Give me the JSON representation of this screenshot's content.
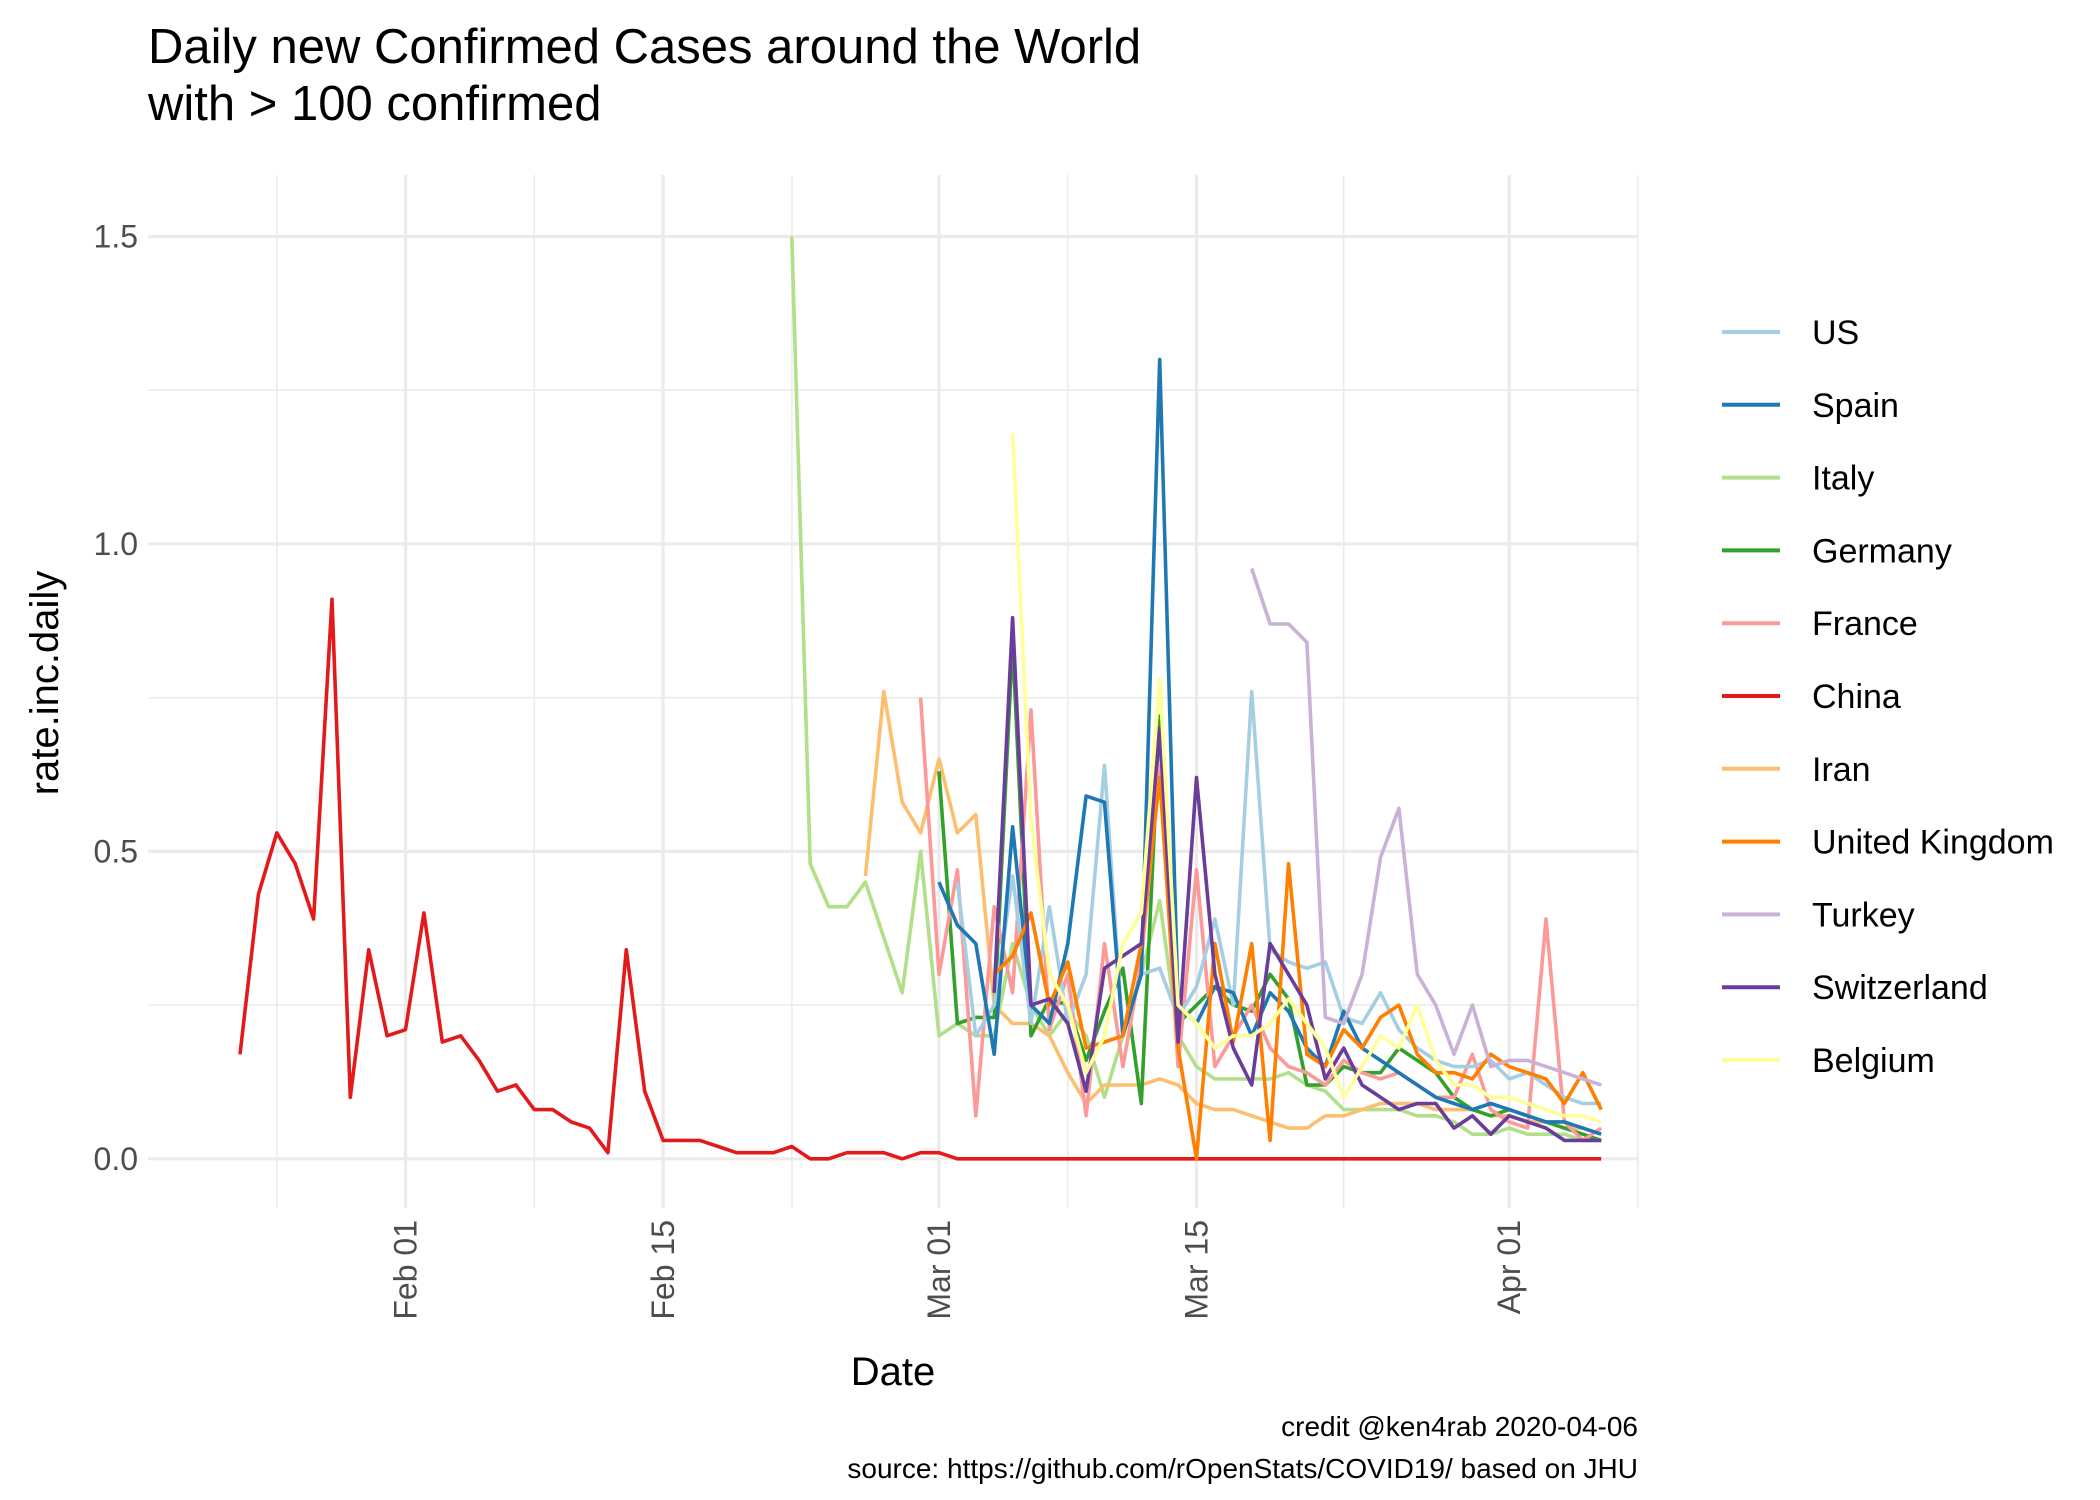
{
  "chart_data": {
    "type": "line",
    "title": [
      "Daily new Confirmed Cases around the World",
      "with > 100 confirmed"
    ],
    "xlabel": "Date",
    "ylabel": "rate.inc.daily",
    "xlim": [
      "2020-01-18",
      "2020-04-08"
    ],
    "ylim": [
      -0.08,
      1.6
    ],
    "x_ticks": [
      {
        "date": "2020-02-01",
        "label": "Feb 01"
      },
      {
        "date": "2020-02-15",
        "label": "Feb 15"
      },
      {
        "date": "2020-03-01",
        "label": "Mar 01"
      },
      {
        "date": "2020-03-15",
        "label": "Mar 15"
      },
      {
        "date": "2020-04-01",
        "label": "Apr 01"
      }
    ],
    "x_minor_ticks": [
      "2020-01-25",
      "2020-02-08",
      "2020-02-22",
      "2020-03-08",
      "2020-03-23",
      "2020-04-08"
    ],
    "y_ticks": [
      {
        "value": 0,
        "label": "0.0"
      },
      {
        "value": 0.5,
        "label": "0.5"
      },
      {
        "value": 1.0,
        "label": "1.0"
      },
      {
        "value": 1.5,
        "label": "1.5"
      }
    ],
    "y_minor_ticks": [
      0.25,
      0.75,
      1.25
    ],
    "grid": true,
    "legend_position": "right",
    "caption": [
      "credit @ken4rab 2020-04-06",
      "source: https://github.com/rOpenStats/COVID19/ based on JHU"
    ],
    "series": [
      {
        "name": "China",
        "color": "#E31A1C",
        "x": [
          "2020-01-23",
          "2020-01-24",
          "2020-01-25",
          "2020-01-26",
          "2020-01-27",
          "2020-01-28",
          "2020-01-29",
          "2020-01-30",
          "2020-01-31",
          "2020-02-01",
          "2020-02-02",
          "2020-02-03",
          "2020-02-04",
          "2020-02-05",
          "2020-02-06",
          "2020-02-07",
          "2020-02-08",
          "2020-02-09",
          "2020-02-10",
          "2020-02-11",
          "2020-02-12",
          "2020-02-13",
          "2020-02-14",
          "2020-02-15",
          "2020-02-16",
          "2020-02-17",
          "2020-02-18",
          "2020-02-19",
          "2020-02-20",
          "2020-02-21",
          "2020-02-22",
          "2020-02-23",
          "2020-02-24",
          "2020-02-25",
          "2020-02-26",
          "2020-02-27",
          "2020-02-28",
          "2020-02-29",
          "2020-03-01",
          "2020-03-02",
          "2020-03-03",
          "2020-04-06"
        ],
        "y": [
          0.17,
          0.43,
          0.53,
          0.48,
          0.39,
          0.91,
          0.1,
          0.34,
          0.2,
          0.21,
          0.4,
          0.19,
          0.2,
          0.16,
          0.11,
          0.12,
          0.08,
          0.08,
          0.06,
          0.05,
          0.01,
          0.34,
          0.11,
          0.03,
          0.03,
          0.03,
          0.02,
          0.01,
          0.01,
          0.01,
          0.02,
          0.0,
          0.0,
          0.01,
          0.01,
          0.01,
          0.0,
          0.01,
          0.01,
          0.0,
          0.0,
          0.0
        ]
      },
      {
        "name": "Italy",
        "color": "#B2DF8A",
        "x": [
          "2020-02-22",
          "2020-02-23",
          "2020-02-24",
          "2020-02-25",
          "2020-02-26",
          "2020-02-27",
          "2020-02-28",
          "2020-02-29",
          "2020-03-01",
          "2020-03-02",
          "2020-03-03",
          "2020-03-04",
          "2020-03-05",
          "2020-03-06",
          "2020-03-07",
          "2020-03-08",
          "2020-03-09",
          "2020-03-10",
          "2020-03-11",
          "2020-03-12",
          "2020-03-13",
          "2020-03-14",
          "2020-03-15",
          "2020-03-16",
          "2020-03-17",
          "2020-03-18",
          "2020-03-19",
          "2020-03-20",
          "2020-03-21",
          "2020-03-22",
          "2020-03-23",
          "2020-03-24",
          "2020-03-25",
          "2020-03-26",
          "2020-03-27",
          "2020-03-28",
          "2020-03-29",
          "2020-03-30",
          "2020-03-31",
          "2020-04-01",
          "2020-04-02",
          "2020-04-03",
          "2020-04-04",
          "2020-04-05",
          "2020-04-06"
        ],
        "y": [
          1.5,
          0.48,
          0.41,
          0.41,
          0.45,
          0.36,
          0.27,
          0.5,
          0.2,
          0.22,
          0.2,
          0.2,
          0.35,
          0.25,
          0.2,
          0.24,
          0.2,
          0.1,
          0.2,
          0.3,
          0.42,
          0.2,
          0.15,
          0.13,
          0.13,
          0.13,
          0.13,
          0.14,
          0.12,
          0.11,
          0.08,
          0.08,
          0.08,
          0.08,
          0.07,
          0.07,
          0.06,
          0.04,
          0.04,
          0.05,
          0.04,
          0.04,
          0.04,
          0.03,
          0.03
        ]
      },
      {
        "name": "Iran",
        "color": "#FDBF6F",
        "x": [
          "2020-02-26",
          "2020-02-27",
          "2020-02-28",
          "2020-02-29",
          "2020-03-01",
          "2020-03-02",
          "2020-03-03",
          "2020-03-04",
          "2020-03-05",
          "2020-03-06",
          "2020-03-07",
          "2020-03-08",
          "2020-03-09",
          "2020-03-10",
          "2020-03-11",
          "2020-03-12",
          "2020-03-13",
          "2020-03-14",
          "2020-03-15",
          "2020-03-16",
          "2020-03-17",
          "2020-03-18",
          "2020-03-19",
          "2020-03-20",
          "2020-03-21",
          "2020-03-22",
          "2020-03-23",
          "2020-03-24",
          "2020-03-25",
          "2020-03-26",
          "2020-03-27",
          "2020-03-28",
          "2020-03-29",
          "2020-03-30",
          "2020-03-31",
          "2020-04-01",
          "2020-04-02",
          "2020-04-03",
          "2020-04-04",
          "2020-04-05",
          "2020-04-06"
        ],
        "y": [
          0.46,
          0.76,
          0.58,
          0.53,
          0.65,
          0.53,
          0.56,
          0.25,
          0.22,
          0.22,
          0.2,
          0.14,
          0.09,
          0.12,
          0.12,
          0.12,
          0.13,
          0.12,
          0.09,
          0.08,
          0.08,
          0.07,
          0.06,
          0.05,
          0.05,
          0.07,
          0.07,
          0.08,
          0.09,
          0.09,
          0.09,
          0.08,
          0.08,
          0.08,
          0.07,
          0.07,
          0.06,
          0.06,
          0.05,
          0.05,
          0.04
        ]
      },
      {
        "name": "Germany",
        "color": "#33A02C",
        "x": [
          "2020-03-01",
          "2020-03-02",
          "2020-03-03",
          "2020-03-04",
          "2020-03-05",
          "2020-03-06",
          "2020-03-07",
          "2020-03-08",
          "2020-03-09",
          "2020-03-10",
          "2020-03-11",
          "2020-03-12",
          "2020-03-13",
          "2020-03-14",
          "2020-03-15",
          "2020-03-16",
          "2020-03-17",
          "2020-03-18",
          "2020-03-19",
          "2020-03-20",
          "2020-03-21",
          "2020-03-22",
          "2020-03-23",
          "2020-03-24",
          "2020-03-25",
          "2020-03-26",
          "2020-03-27",
          "2020-03-28",
          "2020-03-29",
          "2020-03-30",
          "2020-03-31",
          "2020-04-01",
          "2020-04-02",
          "2020-04-03",
          "2020-04-04",
          "2020-04-05",
          "2020-04-06"
        ],
        "y": [
          0.63,
          0.22,
          0.23,
          0.23,
          0.84,
          0.2,
          0.26,
          0.25,
          0.16,
          0.24,
          0.31,
          0.09,
          0.72,
          0.22,
          0.25,
          0.28,
          0.25,
          0.24,
          0.3,
          0.26,
          0.12,
          0.12,
          0.15,
          0.14,
          0.14,
          0.18,
          0.16,
          0.14,
          0.1,
          0.08,
          0.07,
          0.08,
          0.07,
          0.06,
          0.05,
          0.04,
          0.03
        ]
      },
      {
        "name": "France",
        "color": "#FB9A99",
        "x": [
          "2020-02-29",
          "2020-03-01",
          "2020-03-02",
          "2020-03-03",
          "2020-03-04",
          "2020-03-05",
          "2020-03-06",
          "2020-03-07",
          "2020-03-08",
          "2020-03-09",
          "2020-03-10",
          "2020-03-11",
          "2020-03-12",
          "2020-03-13",
          "2020-03-14",
          "2020-03-15",
          "2020-03-16",
          "2020-03-17",
          "2020-03-18",
          "2020-03-19",
          "2020-03-20",
          "2020-03-21",
          "2020-03-22",
          "2020-03-23",
          "2020-03-24",
          "2020-03-25",
          "2020-03-26",
          "2020-03-27",
          "2020-03-28",
          "2020-03-29",
          "2020-03-30",
          "2020-03-31",
          "2020-04-01",
          "2020-04-02",
          "2020-04-03",
          "2020-04-04",
          "2020-04-05",
          "2020-04-06"
        ],
        "y": [
          0.75,
          0.3,
          0.47,
          0.07,
          0.41,
          0.27,
          0.73,
          0.21,
          0.3,
          0.07,
          0.35,
          0.15,
          0.32,
          0.64,
          0.15,
          0.47,
          0.15,
          0.2,
          0.25,
          0.18,
          0.15,
          0.14,
          0.12,
          0.16,
          0.14,
          0.13,
          0.14,
          0.12,
          0.1,
          0.1,
          0.17,
          0.08,
          0.06,
          0.05,
          0.39,
          0.06,
          0.03,
          0.05
        ]
      },
      {
        "name": "US",
        "color": "#A6CEE3",
        "x": [
          "2020-03-02",
          "2020-03-03",
          "2020-03-04",
          "2020-03-05",
          "2020-03-06",
          "2020-03-07",
          "2020-03-08",
          "2020-03-09",
          "2020-03-10",
          "2020-03-11",
          "2020-03-12",
          "2020-03-13",
          "2020-03-14",
          "2020-03-15",
          "2020-03-16",
          "2020-03-17",
          "2020-03-18",
          "2020-03-19",
          "2020-03-20",
          "2020-03-21",
          "2020-03-22",
          "2020-03-23",
          "2020-03-24",
          "2020-03-25",
          "2020-03-26",
          "2020-03-27",
          "2020-03-28",
          "2020-03-29",
          "2020-03-30",
          "2020-03-31",
          "2020-04-01",
          "2020-04-02",
          "2020-04-03",
          "2020-04-04",
          "2020-04-05",
          "2020-04-06"
        ],
        "y": [
          0.45,
          0.2,
          0.25,
          0.46,
          0.22,
          0.41,
          0.22,
          0.3,
          0.64,
          0.2,
          0.3,
          0.31,
          0.23,
          0.28,
          0.39,
          0.25,
          0.76,
          0.34,
          0.32,
          0.31,
          0.32,
          0.23,
          0.22,
          0.27,
          0.21,
          0.18,
          0.16,
          0.15,
          0.15,
          0.16,
          0.13,
          0.14,
          0.12,
          0.1,
          0.09,
          0.09
        ]
      },
      {
        "name": "Spain",
        "color": "#1F78B4",
        "x": [
          "2020-03-01",
          "2020-03-02",
          "2020-03-03",
          "2020-03-04",
          "2020-03-05",
          "2020-03-06",
          "2020-03-07",
          "2020-03-08",
          "2020-03-09",
          "2020-03-10",
          "2020-03-11",
          "2020-03-12",
          "2020-03-13",
          "2020-03-14",
          "2020-03-15",
          "2020-03-16",
          "2020-03-17",
          "2020-03-18",
          "2020-03-19",
          "2020-03-20",
          "2020-03-21",
          "2020-03-22",
          "2020-03-23",
          "2020-03-24",
          "2020-03-25",
          "2020-03-26",
          "2020-03-27",
          "2020-03-28",
          "2020-03-29",
          "2020-03-30",
          "2020-03-31",
          "2020-04-01",
          "2020-04-02",
          "2020-04-03",
          "2020-04-04",
          "2020-04-05",
          "2020-04-06"
        ],
        "y": [
          0.45,
          0.38,
          0.35,
          0.17,
          0.54,
          0.25,
          0.22,
          0.35,
          0.59,
          0.58,
          0.2,
          0.3,
          1.3,
          0.25,
          0.22,
          0.28,
          0.27,
          0.2,
          0.27,
          0.24,
          0.18,
          0.15,
          0.24,
          0.18,
          0.16,
          0.14,
          0.12,
          0.1,
          0.09,
          0.08,
          0.09,
          0.08,
          0.07,
          0.06,
          0.06,
          0.05,
          0.04
        ]
      },
      {
        "name": "United Kingdom",
        "color": "#FF7F00",
        "x": [
          "2020-03-04",
          "2020-03-05",
          "2020-03-06",
          "2020-03-07",
          "2020-03-08",
          "2020-03-09",
          "2020-03-10",
          "2020-03-11",
          "2020-03-12",
          "2020-03-13",
          "2020-03-14",
          "2020-03-15",
          "2020-03-16",
          "2020-03-17",
          "2020-03-18",
          "2020-03-19",
          "2020-03-20",
          "2020-03-21",
          "2020-03-22",
          "2020-03-23",
          "2020-03-24",
          "2020-03-25",
          "2020-03-26",
          "2020-03-27",
          "2020-03-28",
          "2020-03-29",
          "2020-03-30",
          "2020-03-31",
          "2020-04-01",
          "2020-04-02",
          "2020-04-03",
          "2020-04-04",
          "2020-04-05",
          "2020-04-06"
        ],
        "y": [
          0.3,
          0.33,
          0.4,
          0.25,
          0.32,
          0.18,
          0.19,
          0.2,
          0.35,
          0.62,
          0.18,
          0.0,
          0.35,
          0.19,
          0.35,
          0.03,
          0.48,
          0.17,
          0.15,
          0.21,
          0.18,
          0.23,
          0.25,
          0.17,
          0.14,
          0.14,
          0.13,
          0.17,
          0.15,
          0.14,
          0.13,
          0.09,
          0.14,
          0.08
        ]
      },
      {
        "name": "Turkey",
        "color": "#CAB2D6",
        "x": [
          "2020-03-18",
          "2020-03-19",
          "2020-03-20",
          "2020-03-21",
          "2020-03-22",
          "2020-03-23",
          "2020-03-24",
          "2020-03-25",
          "2020-03-26",
          "2020-03-27",
          "2020-03-28",
          "2020-03-29",
          "2020-03-30",
          "2020-03-31",
          "2020-04-01",
          "2020-04-02",
          "2020-04-03",
          "2020-04-04",
          "2020-04-05",
          "2020-04-06"
        ],
        "y": [
          0.96,
          0.87,
          0.87,
          0.84,
          0.23,
          0.22,
          0.3,
          0.49,
          0.57,
          0.3,
          0.25,
          0.17,
          0.25,
          0.15,
          0.16,
          0.16,
          0.15,
          0.14,
          0.13,
          0.12
        ]
      },
      {
        "name": "Switzerland",
        "color": "#6A3D9A",
        "x": [
          "2020-03-04",
          "2020-03-05",
          "2020-03-06",
          "2020-03-07",
          "2020-03-08",
          "2020-03-09",
          "2020-03-10",
          "2020-03-11",
          "2020-03-12",
          "2020-03-13",
          "2020-03-14",
          "2020-03-15",
          "2020-03-16",
          "2020-03-17",
          "2020-03-18",
          "2020-03-19",
          "2020-03-20",
          "2020-03-21",
          "2020-03-22",
          "2020-03-23",
          "2020-03-24",
          "2020-03-25",
          "2020-03-26",
          "2020-03-27",
          "2020-03-28",
          "2020-03-29",
          "2020-03-30",
          "2020-03-31",
          "2020-04-01",
          "2020-04-02",
          "2020-04-03",
          "2020-04-04",
          "2020-04-05",
          "2020-04-06"
        ],
        "y": [
          0.27,
          0.88,
          0.25,
          0.26,
          0.22,
          0.11,
          0.31,
          0.33,
          0.35,
          0.7,
          0.19,
          0.62,
          0.3,
          0.18,
          0.12,
          0.35,
          0.3,
          0.25,
          0.13,
          0.18,
          0.12,
          0.1,
          0.08,
          0.09,
          0.09,
          0.05,
          0.07,
          0.04,
          0.07,
          0.06,
          0.05,
          0.03,
          0.03,
          0.03
        ]
      },
      {
        "name": "Belgium",
        "color": "#FFFF99",
        "x": [
          "2020-03-05",
          "2020-03-06",
          "2020-03-07",
          "2020-03-08",
          "2020-03-09",
          "2020-03-10",
          "2020-03-11",
          "2020-03-12",
          "2020-03-13",
          "2020-03-14",
          "2020-03-15",
          "2020-03-16",
          "2020-03-17",
          "2020-03-18",
          "2020-03-19",
          "2020-03-20",
          "2020-03-21",
          "2020-03-22",
          "2020-03-23",
          "2020-03-24",
          "2020-03-25",
          "2020-03-26",
          "2020-03-27",
          "2020-03-28",
          "2020-03-29",
          "2020-03-30",
          "2020-03-31",
          "2020-04-01",
          "2020-04-02",
          "2020-04-03",
          "2020-04-04",
          "2020-04-05",
          "2020-04-06"
        ],
        "y": [
          1.18,
          0.55,
          0.3,
          0.25,
          0.14,
          0.2,
          0.35,
          0.4,
          0.78,
          0.25,
          0.22,
          0.18,
          0.2,
          0.2,
          0.22,
          0.26,
          0.22,
          0.18,
          0.1,
          0.15,
          0.2,
          0.18,
          0.25,
          0.16,
          0.12,
          0.12,
          0.1,
          0.1,
          0.09,
          0.08,
          0.07,
          0.07,
          0.06
        ]
      }
    ],
    "legend_order": [
      "US",
      "Spain",
      "Italy",
      "Germany",
      "France",
      "China",
      "Iran",
      "United Kingdom",
      "Turkey",
      "Switzerland",
      "Belgium"
    ]
  }
}
